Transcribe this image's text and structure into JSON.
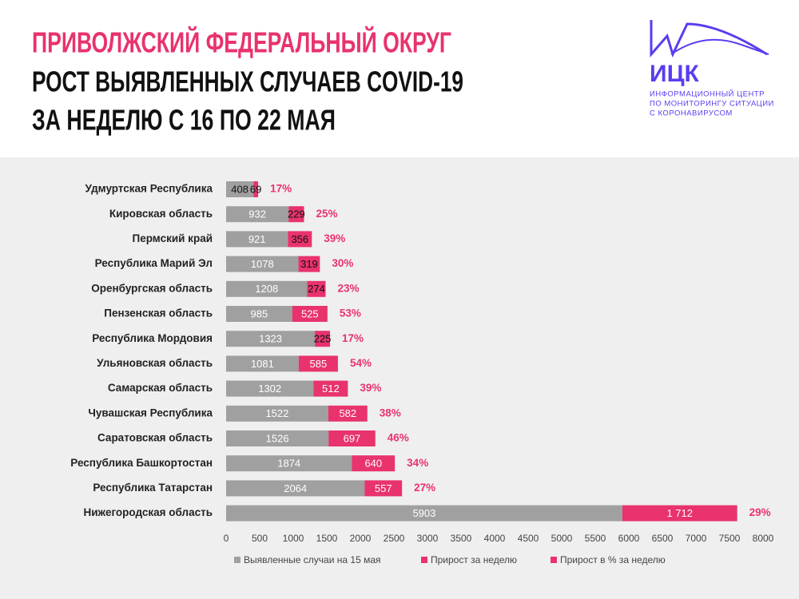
{
  "header": {
    "title_lines": [
      "ПРИВОЛЖСКИЙ ФЕДЕРАЛЬНЫЙ ОКРУГ",
      "РОСТ ВЫЯВЛЕННЫХ СЛУЧАЕВ COVID-19",
      "ЗА НЕДЕЛЮ С 16 ПО 22 МАЯ"
    ]
  },
  "logo": {
    "name": "ИЦК",
    "lines": [
      "ИНФОРМАЦИОННЫЙ ЦЕНТР",
      "ПО МОНИТОРИНГУ СИТУАЦИИ",
      "С КОРОНАВИРУСОМ"
    ]
  },
  "chart_data": {
    "type": "bar",
    "orientation": "horizontal",
    "stacked": true,
    "categories": [
      "Удмуртская Республика",
      "Кировская область",
      "Пермский край",
      "Республика Марий Эл",
      "Оренбургская область",
      "Пензенская область",
      "Республика Мордовия",
      "Ульяновская область",
      "Самарская область",
      "Чувашская Республика",
      "Саратовская область",
      "Республика Башкортостан",
      "Республика Татарстан",
      "Нижегородская область"
    ],
    "series": [
      {
        "name": "Выявленные случаи на 15 мая",
        "color": "#a0a0a0",
        "values": [
          408,
          932,
          921,
          1078,
          1208,
          985,
          1323,
          1081,
          1302,
          1522,
          1526,
          1874,
          2064,
          5903
        ]
      },
      {
        "name": "Прирост за неделю",
        "color": "#e8336d",
        "values": [
          69,
          229,
          356,
          319,
          274,
          525,
          225,
          585,
          512,
          582,
          697,
          640,
          557,
          1712
        ],
        "value_labels": [
          "69",
          "229",
          "356",
          "319",
          "274",
          "525",
          "225",
          "585",
          "512",
          "582",
          "697",
          "640",
          "557",
          "1 712"
        ]
      },
      {
        "name": "Прирост в % за неделю",
        "color": "#e8336d",
        "label_only": true,
        "values": [
          17,
          25,
          39,
          30,
          23,
          53,
          17,
          54,
          39,
          38,
          46,
          34,
          27,
          29
        ],
        "value_labels": [
          "17%",
          "25%",
          "39%",
          "30%",
          "23%",
          "53%",
          "17%",
          "54%",
          "39%",
          "38%",
          "46%",
          "34%",
          "27%",
          "29%"
        ]
      }
    ],
    "xlim": [
      0,
      8000
    ],
    "xticks": [
      0,
      500,
      1000,
      1500,
      2000,
      2500,
      3000,
      3500,
      4000,
      4500,
      5000,
      5500,
      6000,
      6500,
      7000,
      7500,
      8000
    ],
    "legend": "bottom"
  }
}
